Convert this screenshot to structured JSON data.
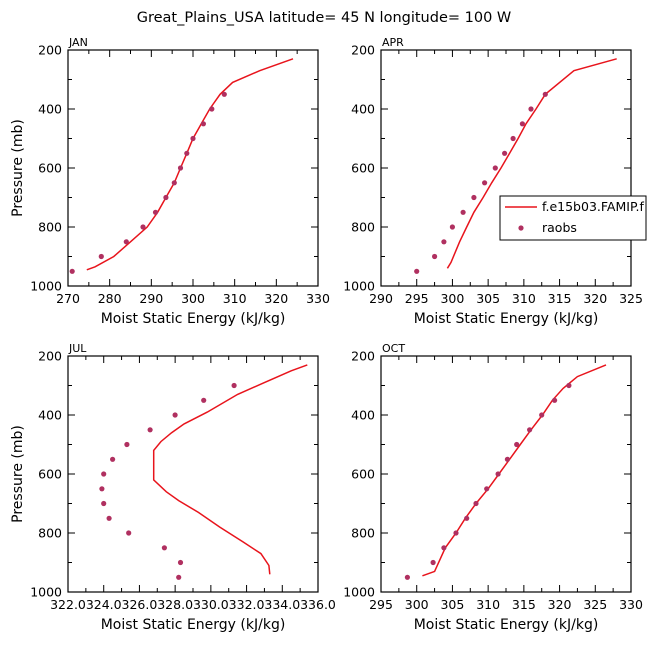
{
  "figure": {
    "title": "Great_Plains_USA   latitude= 45 N longitude= 100 W"
  },
  "legend": {
    "model_label": "f.e15b03.FAMIP.f",
    "obs_label": "raobs",
    "model_color": "#e8141c",
    "obs_color": "#b03060"
  },
  "chart_data": [
    {
      "type": "line",
      "panel": "JAN",
      "xlabel": "Moist Static Energy (kJ/kg)",
      "ylabel": "Pressure (mb)",
      "xlim": [
        270,
        330
      ],
      "ylim": [
        1000,
        200
      ],
      "xticks": [
        "270",
        "280",
        "290",
        "300",
        "310",
        "320",
        "330"
      ],
      "yticks": [
        "200",
        "400",
        "600",
        "800",
        "1000"
      ],
      "model": {
        "x": [
          274.5,
          276.5,
          281,
          285,
          289,
          291.5,
          293.5,
          295.5,
          297,
          298.5,
          300,
          302,
          304,
          306.5,
          309.5,
          316,
          324
        ],
        "y": [
          945,
          935,
          900,
          850,
          800,
          750,
          700,
          650,
          600,
          550,
          500,
          450,
          400,
          350,
          310,
          270,
          230
        ]
      },
      "obs": {
        "x": [
          271,
          278,
          284,
          288,
          291,
          293.5,
          295.5,
          297,
          298.5,
          300,
          302.5,
          304.5,
          307.5
        ],
        "y": [
          950,
          900,
          850,
          800,
          750,
          700,
          650,
          600,
          550,
          500,
          450,
          400,
          350
        ]
      },
      "legend": false
    },
    {
      "type": "line",
      "panel": "APR",
      "xlabel": "Moist Static Energy (kJ/kg)",
      "ylabel": "",
      "xlim": [
        290,
        325
      ],
      "ylim": [
        1000,
        200
      ],
      "xticks": [
        "290",
        "295",
        "300",
        "305",
        "310",
        "315",
        "320",
        "325"
      ],
      "yticks": [
        "200",
        "400",
        "600",
        "800",
        "1000"
      ],
      "model": {
        "x": [
          299.3,
          299.8,
          301,
          302,
          303,
          304.3,
          305.5,
          306.8,
          308,
          309.2,
          310.3,
          311.7,
          313,
          317,
          323
        ],
        "y": [
          940,
          920,
          850,
          800,
          750,
          700,
          650,
          600,
          550,
          500,
          450,
          400,
          350,
          270,
          230
        ]
      },
      "obs": {
        "x": [
          295,
          297.5,
          298.8,
          300,
          301.5,
          303,
          304.5,
          306,
          307.3,
          308.5,
          309.8,
          311,
          313
        ],
        "y": [
          950,
          900,
          850,
          800,
          750,
          700,
          650,
          600,
          550,
          500,
          450,
          400,
          350
        ]
      },
      "legend": true
    },
    {
      "type": "line",
      "panel": "JUL",
      "xlabel": "Moist Static Energy (kJ/kg)",
      "ylabel": "Pressure (mb)",
      "xlim": [
        322.0,
        336.0
      ],
      "ylim": [
        1000,
        200
      ],
      "xticks": [
        "322.0",
        "324.0",
        "326.0",
        "328.0",
        "330.0",
        "332.0",
        "334.0",
        "336.0"
      ],
      "yticks": [
        "200",
        "400",
        "600",
        "800",
        "1000"
      ],
      "model": {
        "x": [
          333.3,
          333.25,
          332.8,
          331.8,
          330.5,
          329.3,
          328.2,
          327.5,
          326.8,
          326.8,
          326.8,
          327.2,
          327.8,
          328.5,
          329.8,
          331.5,
          333.0,
          334.5,
          335.4
        ],
        "y": [
          940,
          910,
          870,
          830,
          780,
          730,
          690,
          660,
          620,
          580,
          520,
          490,
          460,
          430,
          390,
          330,
          290,
          250,
          230
        ]
      },
      "obs": {
        "x": [
          328.2,
          328.3,
          327.4,
          325.4,
          324.3,
          324.0,
          323.9,
          324.0,
          324.5,
          325.3,
          326.6,
          328.0,
          329.6,
          331.3
        ],
        "y": [
          950,
          900,
          850,
          800,
          750,
          700,
          650,
          600,
          550,
          500,
          450,
          400,
          350,
          300
        ]
      },
      "legend": false
    },
    {
      "type": "line",
      "panel": "OCT",
      "xlabel": "Moist Static Energy (kJ/kg)",
      "ylabel": "",
      "xlim": [
        295,
        330
      ],
      "ylim": [
        1000,
        200
      ],
      "xticks": [
        "295",
        "300",
        "305",
        "310",
        "315",
        "320",
        "325",
        "330"
      ],
      "yticks": [
        "200",
        "400",
        "600",
        "800",
        "1000"
      ],
      "model": {
        "x": [
          300.8,
          302.5,
          304,
          305.5,
          306.8,
          308.3,
          310,
          311.5,
          313,
          314.5,
          316,
          317.6,
          319,
          320.5,
          322.5,
          326.5
        ],
        "y": [
          945,
          930,
          850,
          800,
          750,
          700,
          650,
          600,
          550,
          500,
          450,
          400,
          350,
          310,
          270,
          230
        ]
      },
      "obs": {
        "x": [
          298.7,
          302.3,
          303.8,
          305.5,
          307,
          308.3,
          309.8,
          311.4,
          312.7,
          314,
          315.8,
          317.5,
          319.3,
          321.3
        ],
        "y": [
          950,
          900,
          850,
          800,
          750,
          700,
          650,
          600,
          550,
          500,
          450,
          400,
          350,
          300
        ]
      },
      "legend": false
    }
  ]
}
